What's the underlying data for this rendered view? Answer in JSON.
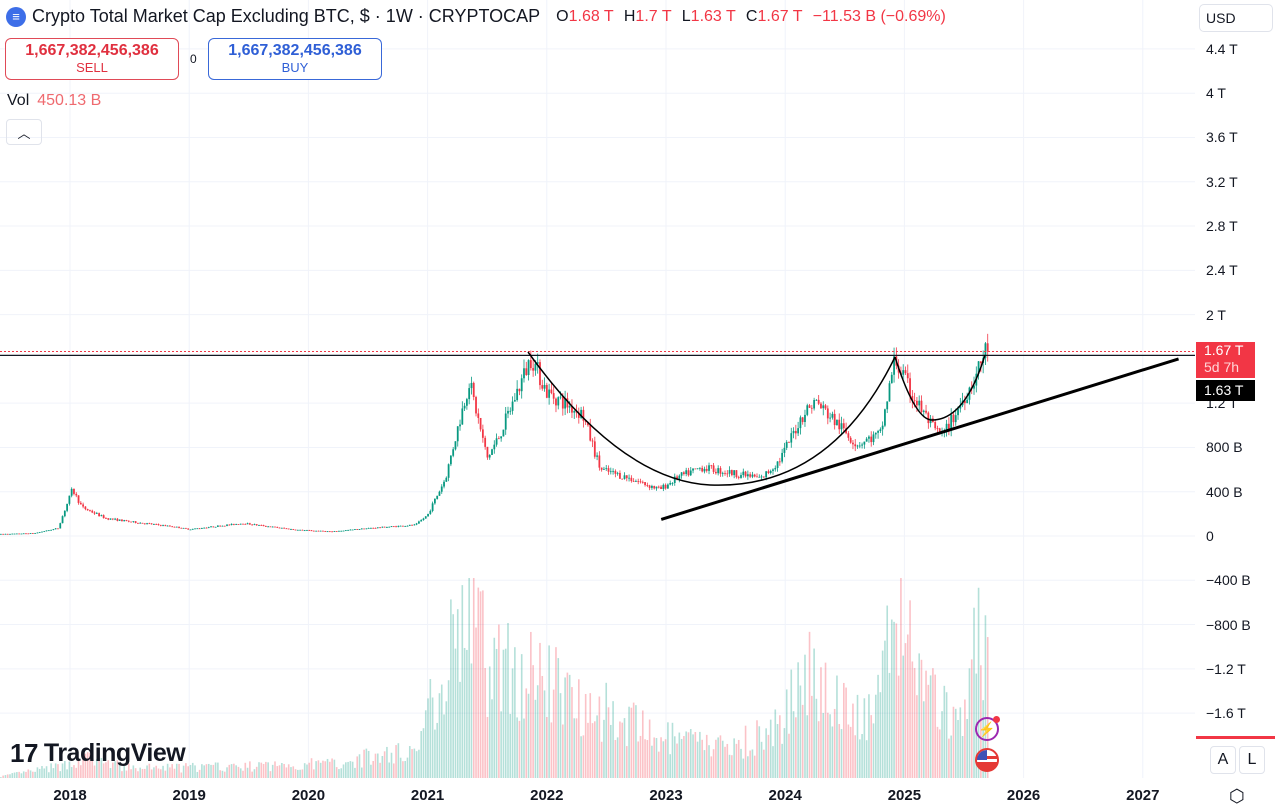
{
  "header": {
    "title": "Crypto Total Market Cap Excluding BTC, $ · 1W · CRYPTOCAP",
    "ohlc": [
      {
        "k": "O",
        "v": "1.68 T"
      },
      {
        "k": "H",
        "v": "1.7 T"
      },
      {
        "k": "L",
        "v": "1.63 T"
      },
      {
        "k": "C",
        "v": "1.67 T"
      }
    ],
    "change": "−11.53 B (−0.69%)"
  },
  "trade": {
    "sell_price": "1,667,382,456,386",
    "sell_label": "SELL",
    "spread": "0",
    "buy_price": "1,667,382,456,386",
    "buy_label": "BUY"
  },
  "volume": {
    "label": "Vol",
    "value": "450.13 B"
  },
  "currency": "USD",
  "price_labels": {
    "last": "1.67 T",
    "countdown": "5d 7h",
    "crosshair": "1.63 T"
  },
  "scale_buttons": {
    "auto": "A",
    "log": "L"
  },
  "brand": "TradingView",
  "colors": {
    "up": "#089981",
    "down": "#f23645",
    "accent": "#2962ff"
  },
  "chart_data": {
    "type": "candlestick",
    "title": "Crypto Total Market Cap Excluding BTC",
    "interval": "1W",
    "y_ticks": [
      "4.4 T",
      "4 T",
      "3.6 T",
      "3.2 T",
      "2.8 T",
      "2.4 T",
      "2 T",
      "1.2 T",
      "800 B",
      "400 B",
      "0",
      "−400 B",
      "−800 B",
      "−1.2 T",
      "−1.6 T"
    ],
    "y_tick_values": [
      4400,
      4000,
      3600,
      3200,
      2800,
      2400,
      2000,
      1200,
      800,
      400,
      0,
      -400,
      -800,
      -1200,
      -1600
    ],
    "x_ticks": [
      "2018",
      "2019",
      "2020",
      "2021",
      "2022",
      "2023",
      "2024",
      "2025",
      "2026",
      "2027"
    ],
    "x_tick_values": [
      2018,
      2019,
      2020,
      2021,
      2022,
      2023,
      2024,
      2025,
      2026,
      2027
    ],
    "units": "B USD",
    "price_path": [
      [
        2017.42,
        18
      ],
      [
        2017.7,
        25
      ],
      [
        2017.9,
        70
      ],
      [
        2018.02,
        420
      ],
      [
        2018.1,
        260
      ],
      [
        2018.3,
        160
      ],
      [
        2018.5,
        130
      ],
      [
        2018.9,
        80
      ],
      [
        2019.0,
        60
      ],
      [
        2019.45,
        115
      ],
      [
        2019.9,
        55
      ],
      [
        2020.2,
        40
      ],
      [
        2020.5,
        70
      ],
      [
        2020.9,
        100
      ],
      [
        2021.0,
        190
      ],
      [
        2021.15,
        520
      ],
      [
        2021.35,
        1400
      ],
      [
        2021.5,
        700
      ],
      [
        2021.6,
        900
      ],
      [
        2021.87,
        1620
      ],
      [
        2022.0,
        1300
      ],
      [
        2022.3,
        1100
      ],
      [
        2022.45,
        600
      ],
      [
        2022.7,
        520
      ],
      [
        2022.95,
        420
      ],
      [
        2023.1,
        530
      ],
      [
        2023.3,
        620
      ],
      [
        2023.6,
        560
      ],
      [
        2023.8,
        520
      ],
      [
        2023.95,
        680
      ],
      [
        2024.15,
        1100
      ],
      [
        2024.25,
        1220
      ],
      [
        2024.45,
        1000
      ],
      [
        2024.6,
        830
      ],
      [
        2024.8,
        920
      ],
      [
        2024.92,
        1600
      ],
      [
        2025.05,
        1300
      ],
      [
        2025.25,
        960
      ],
      [
        2025.32,
        900
      ],
      [
        2025.45,
        1150
      ],
      [
        2025.6,
        1450
      ],
      [
        2025.68,
        1680
      ],
      [
        2025.7,
        1667
      ]
    ],
    "volume_path": [
      [
        2017.42,
        20
      ],
      [
        2017.95,
        150
      ],
      [
        2018.1,
        250
      ],
      [
        2018.5,
        120
      ],
      [
        2019.5,
        140
      ],
      [
        2020.2,
        180
      ],
      [
        2020.9,
        350
      ],
      [
        2021.1,
        1200
      ],
      [
        2021.35,
        2300
      ],
      [
        2021.5,
        1400
      ],
      [
        2021.85,
        1300
      ],
      [
        2022.4,
        900
      ],
      [
        2022.9,
        500
      ],
      [
        2023.5,
        380
      ],
      [
        2023.95,
        600
      ],
      [
        2024.2,
        1400
      ],
      [
        2024.6,
        700
      ],
      [
        2024.8,
        900
      ],
      [
        2024.92,
        2200
      ],
      [
        2025.2,
        1100
      ],
      [
        2025.45,
        600
      ],
      [
        2025.6,
        1700
      ],
      [
        2025.7,
        1300
      ]
    ],
    "horizontal_level": 1650,
    "trendline": [
      [
        2022.96,
        150
      ],
      [
        2027.3,
        1600
      ]
    ]
  }
}
